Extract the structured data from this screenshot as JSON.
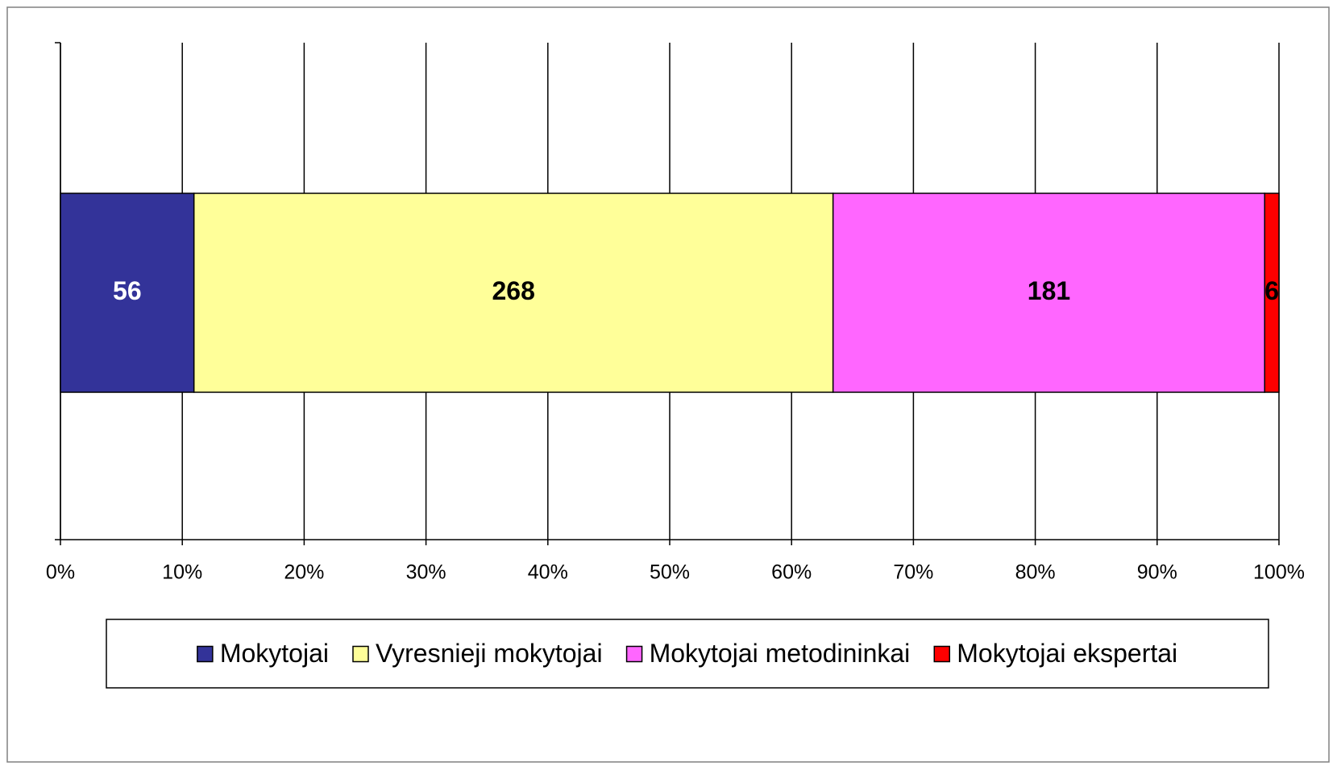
{
  "chart_data": {
    "type": "stacked-bar-100",
    "series": [
      {
        "name": "Mokytojai",
        "color": "#333399",
        "label_color": "#ffffff",
        "values": [
          56
        ]
      },
      {
        "name": "Vyresnieji mokytojai",
        "color": "#ffff99",
        "label_color": "#000000",
        "values": [
          268
        ]
      },
      {
        "name": "Mokytojai metodininkai",
        "color": "#ff66ff",
        "label_color": "#000000",
        "values": [
          181
        ]
      },
      {
        "name": "Mokytojai ekspertai",
        "color": "#ff0000",
        "label_color": "#000000",
        "values": [
          6
        ]
      }
    ],
    "xlim": [
      0,
      100
    ],
    "xticks": [
      {
        "value": 0,
        "label": "0%"
      },
      {
        "value": 10,
        "label": "10%"
      },
      {
        "value": 20,
        "label": "20%"
      },
      {
        "value": 30,
        "label": "30%"
      },
      {
        "value": 40,
        "label": "40%"
      },
      {
        "value": 50,
        "label": "50%"
      },
      {
        "value": 60,
        "label": "60%"
      },
      {
        "value": 70,
        "label": "70%"
      },
      {
        "value": 80,
        "label": "80%"
      },
      {
        "value": 90,
        "label": "90%"
      },
      {
        "value": 100,
        "label": "100%"
      }
    ],
    "grid": true,
    "legend": "bottom"
  }
}
